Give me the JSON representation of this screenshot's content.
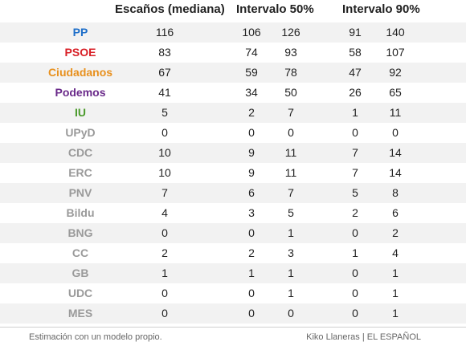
{
  "chart_data": {
    "type": "table",
    "columns": [
      "Escaños (mediana)",
      "Intervalo 50%",
      "Intervalo 90%"
    ],
    "rows": [
      {
        "party": "PP",
        "color": "#1f6fc9",
        "median": "116",
        "i50": [
          "106",
          "126"
        ],
        "i90": [
          "91",
          "140"
        ]
      },
      {
        "party": "PSOE",
        "color": "#d81f26",
        "median": "83",
        "i50": [
          "74",
          "93"
        ],
        "i90": [
          "58",
          "107"
        ]
      },
      {
        "party": "Ciudadanos",
        "color": "#e8901d",
        "median": "67",
        "i50": [
          "59",
          "78"
        ],
        "i90": [
          "47",
          "92"
        ]
      },
      {
        "party": "Podemos",
        "color": "#6a2a8a",
        "median": "41",
        "i50": [
          "34",
          "50"
        ],
        "i90": [
          "26",
          "65"
        ]
      },
      {
        "party": "IU",
        "color": "#4a9a2b",
        "median": "5",
        "i50": [
          "2",
          "7"
        ],
        "i90": [
          "1",
          "11"
        ]
      },
      {
        "party": "UPyD",
        "color": "#9a9a9a",
        "median": "0",
        "i50": [
          "0",
          "0"
        ],
        "i90": [
          "0",
          "0"
        ]
      },
      {
        "party": "CDC",
        "color": "#9a9a9a",
        "median": "10",
        "i50": [
          "9",
          "11"
        ],
        "i90": [
          "7",
          "14"
        ]
      },
      {
        "party": "ERC",
        "color": "#9a9a9a",
        "median": "10",
        "i50": [
          "9",
          "11"
        ],
        "i90": [
          "7",
          "14"
        ]
      },
      {
        "party": "PNV",
        "color": "#9a9a9a",
        "median": "7",
        "i50": [
          "6",
          "7"
        ],
        "i90": [
          "5",
          "8"
        ]
      },
      {
        "party": "Bildu",
        "color": "#9a9a9a",
        "median": "4",
        "i50": [
          "3",
          "5"
        ],
        "i90": [
          "2",
          "6"
        ]
      },
      {
        "party": "BNG",
        "color": "#9a9a9a",
        "median": "0",
        "i50": [
          "0",
          "1"
        ],
        "i90": [
          "0",
          "2"
        ]
      },
      {
        "party": "CC",
        "color": "#9a9a9a",
        "median": "2",
        "i50": [
          "2",
          "3"
        ],
        "i90": [
          "1",
          "4"
        ]
      },
      {
        "party": "GB",
        "color": "#9a9a9a",
        "median": "1",
        "i50": [
          "1",
          "1"
        ],
        "i90": [
          "0",
          "1"
        ]
      },
      {
        "party": "UDC",
        "color": "#9a9a9a",
        "median": "0",
        "i50": [
          "0",
          "1"
        ],
        "i90": [
          "0",
          "1"
        ]
      },
      {
        "party": "MES",
        "color": "#9a9a9a",
        "median": "0",
        "i50": [
          "0",
          "0"
        ],
        "i90": [
          "0",
          "1"
        ]
      }
    ]
  },
  "footer": {
    "note": "Estimación con un modelo propio.",
    "credit": "Kiko Llaneras  |  EL ESPAÑOL"
  }
}
